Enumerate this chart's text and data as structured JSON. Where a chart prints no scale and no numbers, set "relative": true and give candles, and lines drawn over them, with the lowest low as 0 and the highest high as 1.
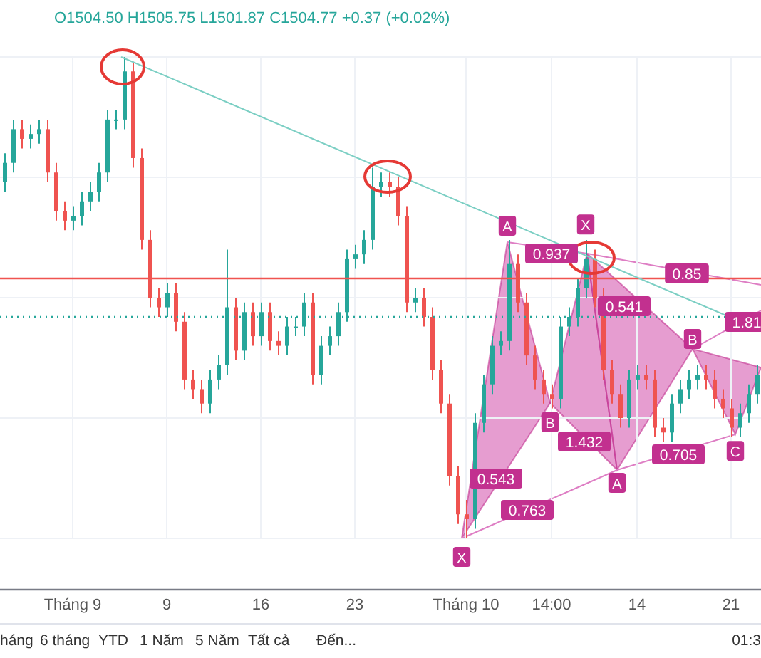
{
  "chart_data": {
    "type": "candlestick",
    "relative": true,
    "grid": true,
    "categories": [
      null,
      null,
      null,
      null,
      null,
      null,
      null,
      null,
      "Tháng 9",
      null,
      null,
      null,
      null,
      null,
      null,
      null,
      null,
      null,
      null,
      "9",
      null,
      null,
      null,
      null,
      null,
      null,
      null,
      null,
      null,
      null,
      "16",
      null,
      null,
      null,
      null,
      null,
      null,
      null,
      null,
      null,
      null,
      "23",
      null,
      null,
      null,
      null,
      null,
      null,
      null,
      null,
      null,
      null,
      null,
      null,
      "Tháng 10",
      null,
      null,
      null,
      null,
      null,
      null,
      null,
      null,
      null,
      "14:00",
      null,
      null,
      null,
      null,
      null,
      null,
      null,
      null,
      null,
      "14",
      null,
      null,
      null,
      null,
      null,
      null,
      null,
      null,
      null,
      null,
      "21",
      null,
      null,
      null
    ],
    "ohlc": [
      [
        0.74,
        0.8,
        0.72,
        0.78
      ],
      [
        0.78,
        0.87,
        0.76,
        0.85
      ],
      [
        0.85,
        0.87,
        0.81,
        0.83
      ],
      [
        0.83,
        0.86,
        0.81,
        0.84
      ],
      [
        0.84,
        0.87,
        0.82,
        0.85
      ],
      [
        0.85,
        0.87,
        0.74,
        0.76
      ],
      [
        0.76,
        0.78,
        0.66,
        0.68
      ],
      [
        0.68,
        0.7,
        0.64,
        0.66
      ],
      [
        0.66,
        0.69,
        0.64,
        0.67
      ],
      [
        0.67,
        0.72,
        0.65,
        0.7
      ],
      [
        0.7,
        0.74,
        0.68,
        0.72
      ],
      [
        0.72,
        0.78,
        0.7,
        0.76
      ],
      [
        0.76,
        0.89,
        0.74,
        0.87
      ],
      [
        0.87,
        0.89,
        0.85,
        0.87
      ],
      [
        0.87,
        1.0,
        0.85,
        0.97
      ],
      [
        0.97,
        0.99,
        0.77,
        0.79
      ],
      [
        0.79,
        0.81,
        0.6,
        0.62
      ],
      [
        0.62,
        0.64,
        0.48,
        0.5
      ],
      [
        0.5,
        0.52,
        0.46,
        0.48
      ],
      [
        0.48,
        0.53,
        0.46,
        0.51
      ],
      [
        0.51,
        0.53,
        0.43,
        0.45
      ],
      [
        0.45,
        0.47,
        0.31,
        0.33
      ],
      [
        0.33,
        0.35,
        0.29,
        0.31
      ],
      [
        0.31,
        0.33,
        0.26,
        0.28
      ],
      [
        0.28,
        0.35,
        0.26,
        0.33
      ],
      [
        0.33,
        0.38,
        0.31,
        0.36
      ],
      [
        0.36,
        0.6,
        0.34,
        0.48
      ],
      [
        0.48,
        0.5,
        0.37,
        0.39
      ],
      [
        0.39,
        0.49,
        0.37,
        0.47
      ],
      [
        0.47,
        0.49,
        0.4,
        0.42
      ],
      [
        0.42,
        0.49,
        0.4,
        0.47
      ],
      [
        0.47,
        0.49,
        0.39,
        0.41
      ],
      [
        0.41,
        0.43,
        0.38,
        0.4
      ],
      [
        0.4,
        0.46,
        0.38,
        0.44
      ],
      [
        0.44,
        0.46,
        0.42,
        0.44
      ],
      [
        0.44,
        0.51,
        0.42,
        0.49
      ],
      [
        0.49,
        0.51,
        0.32,
        0.34
      ],
      [
        0.34,
        0.42,
        0.32,
        0.4
      ],
      [
        0.4,
        0.44,
        0.38,
        0.42
      ],
      [
        0.42,
        0.49,
        0.4,
        0.47
      ],
      [
        0.47,
        0.6,
        0.45,
        0.58
      ],
      [
        0.58,
        0.61,
        0.56,
        0.59
      ],
      [
        0.59,
        0.64,
        0.57,
        0.62
      ],
      [
        0.62,
        0.77,
        0.6,
        0.73
      ],
      [
        0.73,
        0.76,
        0.71,
        0.74
      ],
      [
        0.74,
        0.76,
        0.71,
        0.73
      ],
      [
        0.73,
        0.75,
        0.65,
        0.67
      ],
      [
        0.67,
        0.69,
        0.47,
        0.49
      ],
      [
        0.49,
        0.52,
        0.47,
        0.5
      ],
      [
        0.5,
        0.52,
        0.44,
        0.46
      ],
      [
        0.46,
        0.48,
        0.33,
        0.35
      ],
      [
        0.35,
        0.37,
        0.26,
        0.28
      ],
      [
        0.28,
        0.3,
        0.11,
        0.13
      ],
      [
        0.13,
        0.15,
        0.03,
        0.05
      ],
      [
        0.05,
        0.08,
        0.0,
        0.04
      ],
      [
        0.04,
        0.26,
        0.02,
        0.24
      ],
      [
        0.24,
        0.34,
        0.22,
        0.32
      ],
      [
        0.32,
        0.42,
        0.3,
        0.4
      ],
      [
        0.4,
        0.43,
        0.38,
        0.41
      ],
      [
        0.41,
        0.62,
        0.39,
        0.57
      ],
      [
        0.57,
        0.59,
        0.47,
        0.49
      ],
      [
        0.49,
        0.51,
        0.36,
        0.38
      ],
      [
        0.38,
        0.4,
        0.31,
        0.33
      ],
      [
        0.33,
        0.35,
        0.28,
        0.3
      ],
      [
        0.3,
        0.32,
        0.27,
        0.29
      ],
      [
        0.29,
        0.46,
        0.27,
        0.44
      ],
      [
        0.44,
        0.48,
        0.42,
        0.46
      ],
      [
        0.46,
        0.54,
        0.44,
        0.52
      ],
      [
        0.52,
        0.62,
        0.5,
        0.58
      ],
      [
        0.58,
        0.6,
        0.48,
        0.5
      ],
      [
        0.5,
        0.52,
        0.33,
        0.35
      ],
      [
        0.35,
        0.37,
        0.28,
        0.3
      ],
      [
        0.3,
        0.32,
        0.23,
        0.25
      ],
      [
        0.25,
        0.35,
        0.23,
        0.33
      ],
      [
        0.33,
        0.36,
        0.31,
        0.34
      ],
      [
        0.34,
        0.36,
        0.31,
        0.33
      ],
      [
        0.33,
        0.35,
        0.21,
        0.23
      ],
      [
        0.23,
        0.25,
        0.2,
        0.22
      ],
      [
        0.22,
        0.3,
        0.2,
        0.28
      ],
      [
        0.28,
        0.33,
        0.26,
        0.31
      ],
      [
        0.31,
        0.35,
        0.29,
        0.33
      ],
      [
        0.33,
        0.36,
        0.31,
        0.34
      ],
      [
        0.34,
        0.36,
        0.31,
        0.33
      ],
      [
        0.33,
        0.35,
        0.27,
        0.29
      ],
      [
        0.29,
        0.31,
        0.25,
        0.27
      ],
      [
        0.27,
        0.29,
        0.21,
        0.23
      ],
      [
        0.23,
        0.28,
        0.21,
        0.26
      ],
      [
        0.26,
        0.32,
        0.24,
        0.3
      ],
      [
        0.3,
        0.36,
        0.28,
        0.34
      ]
    ],
    "ref_lines": [
      {
        "axis": "y",
        "value": 0.54,
        "color": "#f05350",
        "line_style": "solid"
      },
      {
        "axis": "y",
        "value": 0.46,
        "color": "#26a69a",
        "line_style": "dotted"
      }
    ],
    "annotations": [
      "O1504.50 H1505.75 L1501.87 C1504.77 +0.37 (+0.02%)",
      {
        "text": "A",
        "y": 0.62
      },
      {
        "text": "X",
        "y": 0.59
      },
      {
        "text": "B",
        "y": 0.28
      },
      {
        "text": "X",
        "y": 0
      },
      "A",
      "B",
      {
        "text": "C",
        "y": 0.22
      },
      "0.937",
      "0.85",
      "0.541",
      "1.81",
      "0.543",
      "1.432",
      "0.763",
      "0.705",
      "háng",
      "6 tháng",
      "YTD",
      "1 Năm",
      "5 Năm",
      "Tất cả",
      "Đến...",
      "01:3"
    ]
  }
}
